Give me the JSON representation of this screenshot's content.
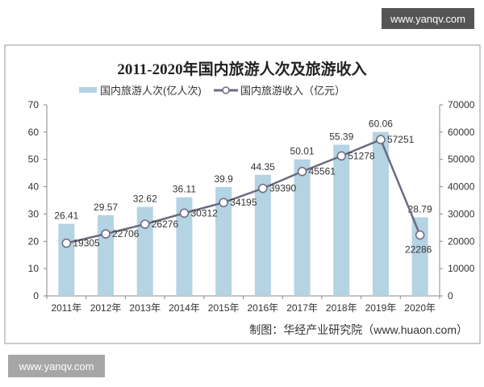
{
  "watermark_top": "www.yanqv.com",
  "watermark_bottom": "www.yanqv.com",
  "chart_data": {
    "type": "bar+line",
    "title": "2011-2020年国内旅游人次及旅游收入",
    "source": "制图：华经产业研究院（www.huaon.com）",
    "categories": [
      "2011年",
      "2012年",
      "2013年",
      "2014年",
      "2015年",
      "2016年",
      "2017年",
      "2018年",
      "2019年",
      "2020年"
    ],
    "series": [
      {
        "name": "国内旅游人次(亿人次)",
        "type": "bar",
        "axis": "left",
        "color": "#b4d3e3",
        "values": [
          26.41,
          29.57,
          32.62,
          36.11,
          39.9,
          44.35,
          50.01,
          55.39,
          60.06,
          28.79
        ]
      },
      {
        "name": "国内旅游收入（亿元）",
        "type": "line",
        "axis": "right",
        "color": "#6b6b80",
        "values": [
          19305,
          22706,
          26276,
          30312,
          34195,
          39390,
          45561,
          51278,
          57251,
          22286
        ]
      }
    ],
    "y_left": {
      "min": 0,
      "max": 70,
      "ticks": [
        "0",
        "10",
        "20",
        "30",
        "40",
        "50",
        "60",
        "70"
      ]
    },
    "y_right": {
      "min": 0,
      "max": 70000,
      "ticks": [
        "0",
        "10000",
        "20000",
        "30000",
        "40000",
        "50000",
        "60000",
        "70000"
      ]
    },
    "legend": "top",
    "grid": false
  }
}
